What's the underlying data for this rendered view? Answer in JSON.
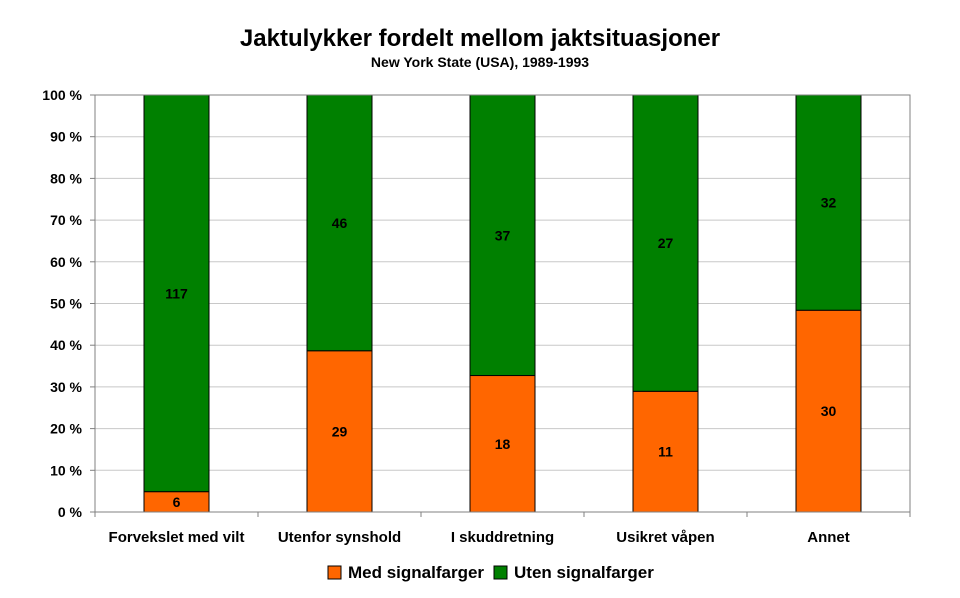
{
  "chart_data": {
    "type": "bar",
    "stacked": "percent",
    "title": "Jaktulykker fordelt mellom jaktsituasjoner",
    "subtitle": "New York State (USA), 1989-1993",
    "categories": [
      "Forvekslet med vilt",
      "Utenfor synshold",
      "I skuddretning",
      "Usikret våpen",
      "Annet"
    ],
    "series": [
      {
        "name": "Med signalfarger",
        "values": [
          6,
          29,
          18,
          11,
          30
        ],
        "color": "#ff6600"
      },
      {
        "name": "Uten signalfarger",
        "values": [
          117,
          46,
          37,
          27,
          32
        ],
        "color": "#008000"
      }
    ],
    "yticks": [
      "0 %",
      "10 %",
      "20 %",
      "30 %",
      "40 %",
      "50 %",
      "60 %",
      "70 %",
      "80 %",
      "90 %",
      "100 %"
    ],
    "ylim": [
      0,
      100
    ],
    "grid": true,
    "legend": "bottom"
  }
}
